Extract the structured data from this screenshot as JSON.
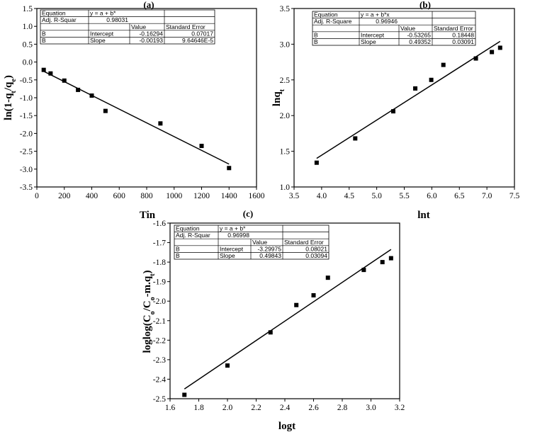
{
  "chart_data": [
    {
      "type": "scatter",
      "panel_label": "(a)",
      "xlabel": "Tin",
      "ylabel": "ln(1-q_t/q_e)",
      "xlim": [
        0,
        1600
      ],
      "ylim": [
        -3.5,
        1.5
      ],
      "xticks": [
        "0",
        "200",
        "400",
        "600",
        "800",
        "1000",
        "1200",
        "1400",
        "1600"
      ],
      "yticks": [
        "-3.5",
        "-3.0",
        "-2.5",
        "-2.0",
        "-1.5",
        "-1.0",
        "-0.5",
        "0.0",
        "0.5",
        "1.0",
        "1.5"
      ],
      "points": [
        [
          50,
          -0.22
        ],
        [
          100,
          -0.32
        ],
        [
          200,
          -0.52
        ],
        [
          300,
          -0.78
        ],
        [
          400,
          -0.94
        ],
        [
          500,
          -1.37
        ],
        [
          900,
          -1.72
        ],
        [
          1200,
          -2.35
        ],
        [
          1400,
          -2.97
        ]
      ],
      "fit": {
        "x": [
          50,
          1400
        ],
        "y": [
          -0.26,
          -2.86
        ]
      },
      "table": {
        "equation_label": "Equation",
        "equation": "y = a + b*",
        "r2_label": "Adj. R-Squar",
        "r2": "0.98031",
        "h_value": "Value",
        "h_se": "Standard Error",
        "rows": [
          {
            "b": "B",
            "param": "Intercept",
            "value": "-0.16294",
            "se": "0.07017"
          },
          {
            "b": "B",
            "param": "Slope",
            "value": "-0.00193",
            "se": "9.64646E-5"
          }
        ]
      }
    },
    {
      "type": "scatter",
      "panel_label": "(b)",
      "xlabel": "lnt",
      "ylabel": "lnq_t",
      "xlim": [
        3.5,
        7.5
      ],
      "ylim": [
        1.0,
        3.5
      ],
      "xticks": [
        "3.5",
        "4.0",
        "4.5",
        "5.0",
        "5.5",
        "6.0",
        "6.5",
        "7.0",
        "7.5"
      ],
      "yticks": [
        "1.0",
        "1.5",
        "2.0",
        "2.5",
        "3.0",
        "3.5"
      ],
      "points": [
        [
          3.91,
          1.34
        ],
        [
          4.61,
          1.68
        ],
        [
          5.3,
          2.06
        ],
        [
          5.7,
          2.38
        ],
        [
          5.99,
          2.5
        ],
        [
          6.21,
          2.71
        ],
        [
          6.8,
          2.8
        ],
        [
          7.09,
          2.89
        ],
        [
          7.24,
          2.95
        ]
      ],
      "fit": {
        "x": [
          3.91,
          7.24
        ],
        "y": [
          1.4,
          3.04
        ]
      },
      "table": {
        "equation_label": "Equation",
        "equation": "y = a + b*x",
        "r2_label": "Adj. R-Square",
        "r2": "0.96946",
        "h_value": "Value",
        "h_se": "Standard Error",
        "rows": [
          {
            "b": "B",
            "param": "Intercept",
            "value": "-0.53265",
            "se": "0.18448"
          },
          {
            "b": "B",
            "param": "Slope",
            "value": "0.49352",
            "se": "0.03091"
          }
        ]
      }
    },
    {
      "type": "scatter",
      "panel_label": "(c)",
      "xlabel": "logt",
      "ylabel": "loglog(C_o/C_o-m.q_t)",
      "xlim": [
        1.6,
        3.2
      ],
      "ylim": [
        -2.5,
        -1.6
      ],
      "xticks": [
        "1.6",
        "1.8",
        "2.0",
        "2.2",
        "2.4",
        "2.6",
        "2.8",
        "3.0",
        "3.2"
      ],
      "yticks": [
        "-2.5",
        "-2.4",
        "-2.3",
        "-2.2",
        "-2.1",
        "-2.0",
        "-1.9",
        "-1.8",
        "-1.7",
        "-1.6"
      ],
      "points": [
        [
          1.7,
          -2.48
        ],
        [
          2.0,
          -2.33
        ],
        [
          2.3,
          -2.16
        ],
        [
          2.48,
          -2.02
        ],
        [
          2.6,
          -1.97
        ],
        [
          2.7,
          -1.88
        ],
        [
          2.95,
          -1.84
        ],
        [
          3.08,
          -1.8
        ],
        [
          3.14,
          -1.78
        ]
      ],
      "fit": {
        "x": [
          1.7,
          3.14
        ],
        "y": [
          -2.45,
          -1.735
        ]
      },
      "table": {
        "equation_label": "Equation",
        "equation": "y = a + b*",
        "r2_label": "Adj. R-Squar",
        "r2": "0.96998",
        "h_value": "Value",
        "h_se": "Standard Error",
        "rows": [
          {
            "b": "B",
            "param": "Intercept",
            "value": "-3.29975",
            "se": "0.08021"
          },
          {
            "b": "B",
            "param": "Slope",
            "value": "0.49843",
            "se": "0.03094"
          }
        ]
      }
    }
  ]
}
